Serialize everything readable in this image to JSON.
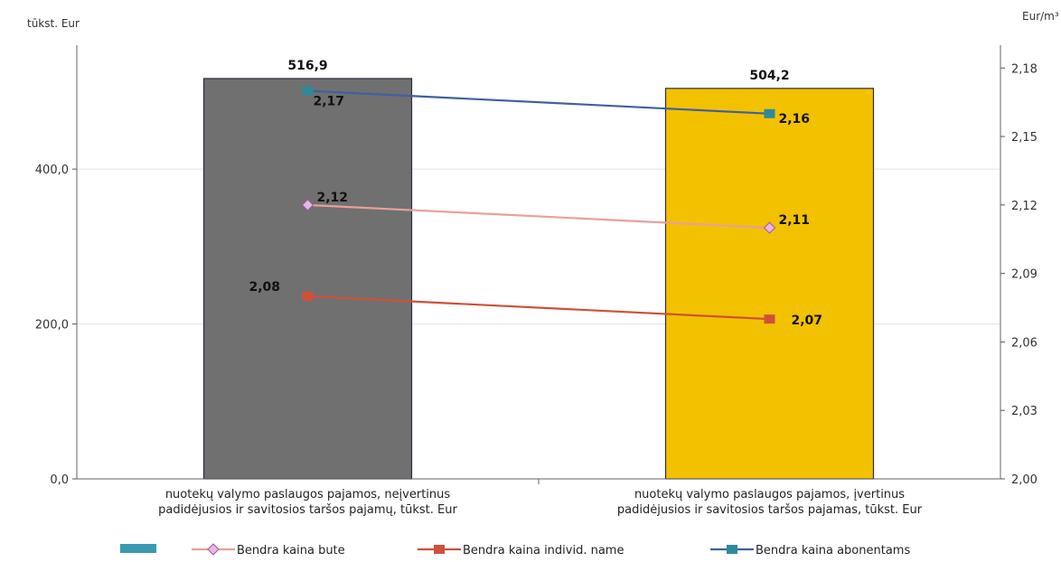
{
  "chart_data": {
    "type": "bar",
    "categories": [
      [
        "nuotekų valymo paslaugos pajamos, neįvertinus",
        "padidėjusios ir savitosios taršos pajamų, tūkst. Eur"
      ],
      [
        "nuotekų valymo paslaugos pajamos, įvertinus",
        "padidėjusios ir savitosios taršos pajamas, tūkst. Eur"
      ]
    ],
    "bars": {
      "values": [
        516.9,
        504.2
      ],
      "labels": [
        "516,9",
        "504,2"
      ],
      "colors": [
        "#707070",
        "#F2C200"
      ]
    },
    "series": [
      {
        "name": "Bendra kaina bute",
        "values": [
          2.12,
          2.11
        ],
        "labels": [
          "2,12",
          "2,11"
        ],
        "color": "#E8A09A",
        "marker": "diamond",
        "marker_fill": "#E6B8E6"
      },
      {
        "name": "Bendra kaina individ. name",
        "values": [
          2.08,
          2.07
        ],
        "labels": [
          "2,08",
          "2,07"
        ],
        "color": "#D0503A",
        "marker": "square",
        "marker_fill": "#D0503A"
      },
      {
        "name": "Bendra kaina abonentams",
        "values": [
          2.17,
          2.16
        ],
        "labels": [
          "2,17",
          "2,16"
        ],
        "color": "#4060A0",
        "marker": "square",
        "marker_fill": "#2E8A9A"
      }
    ],
    "left_axis": {
      "label": "tūkst. Eur",
      "ylim": [
        0,
        560
      ],
      "ticks": [
        0,
        200,
        400
      ],
      "tick_labels": [
        "0,0",
        "200,0",
        "400,0"
      ]
    },
    "right_axis": {
      "label": "Eur/m³",
      "ylim": [
        2.0,
        2.19
      ],
      "ticks": [
        2.0,
        2.03,
        2.06,
        2.09,
        2.12,
        2.15,
        2.18
      ],
      "tick_labels": [
        "2,00",
        "2,03",
        "2,06",
        "2,09",
        "2,12",
        "2,15",
        "2,18"
      ]
    },
    "grid": true,
    "legend": {
      "position": "bottom",
      "bar_color": "#3A9AB0"
    }
  }
}
